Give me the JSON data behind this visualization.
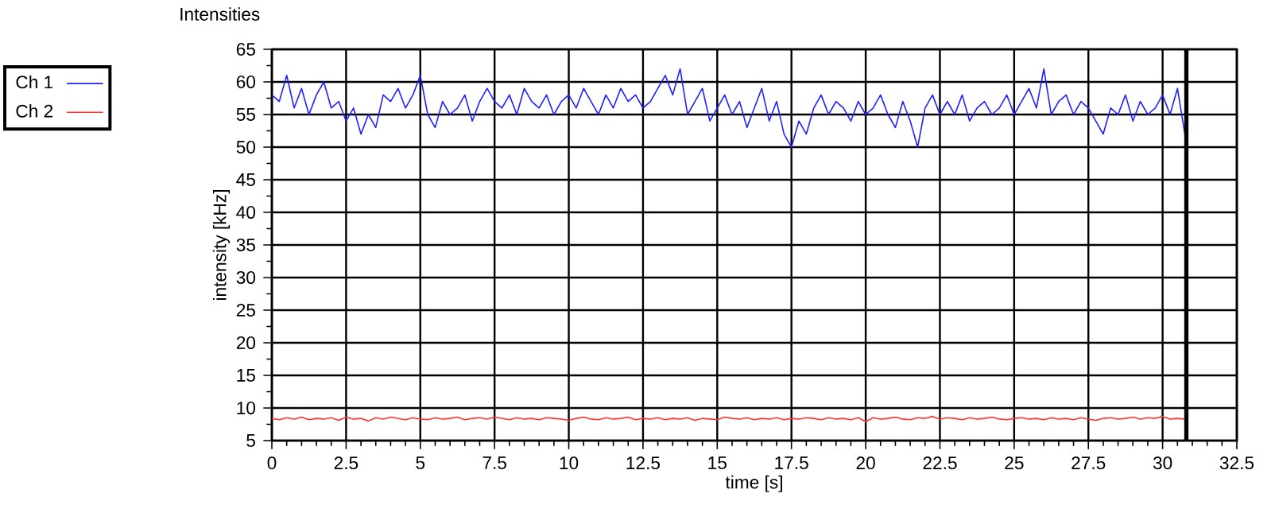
{
  "chart_data": {
    "type": "line",
    "title": "Intensities",
    "xlabel": "time [s]",
    "ylabel": "intensity [kHz]",
    "x": [
      0,
      0.25,
      0.5,
      0.75,
      1,
      1.25,
      1.5,
      1.75,
      2,
      2.25,
      2.5,
      2.75,
      3,
      3.25,
      3.5,
      3.75,
      4,
      4.25,
      4.5,
      4.75,
      5,
      5.25,
      5.5,
      5.75,
      6,
      6.25,
      6.5,
      6.75,
      7,
      7.25,
      7.5,
      7.75,
      8,
      8.25,
      8.5,
      8.75,
      9,
      9.25,
      9.5,
      9.75,
      10,
      10.25,
      10.5,
      10.75,
      11,
      11.25,
      11.5,
      11.75,
      12,
      12.25,
      12.5,
      12.75,
      13,
      13.25,
      13.5,
      13.75,
      14,
      14.25,
      14.5,
      14.75,
      15,
      15.25,
      15.5,
      15.75,
      16,
      16.25,
      16.5,
      16.75,
      17,
      17.25,
      17.5,
      17.75,
      18,
      18.25,
      18.5,
      18.75,
      19,
      19.25,
      19.5,
      19.75,
      20,
      20.25,
      20.5,
      20.75,
      21,
      21.25,
      21.5,
      21.75,
      22,
      22.25,
      22.5,
      22.75,
      23,
      23.25,
      23.5,
      23.75,
      24,
      24.25,
      24.5,
      24.75,
      25,
      25.25,
      25.5,
      25.75,
      26,
      26.25,
      26.5,
      26.75,
      27,
      27.25,
      27.5,
      27.75,
      28,
      28.25,
      28.5,
      28.75,
      29,
      29.25,
      29.5,
      29.75,
      30,
      30.25,
      30.5,
      30.75
    ],
    "series": [
      {
        "name": "Ch 1",
        "color": "#1f1fff",
        "values": [
          58,
          57,
          61,
          56,
          59,
          55,
          58,
          60,
          56,
          57,
          54,
          56,
          52,
          55,
          53,
          58,
          57,
          59,
          56,
          58,
          61,
          55,
          53,
          57,
          55,
          56,
          58,
          54,
          57,
          59,
          57,
          56,
          58,
          55,
          59,
          57,
          56,
          58,
          55,
          57,
          58,
          56,
          59,
          57,
          55,
          58,
          56,
          59,
          57,
          58,
          56,
          57,
          59,
          61,
          58,
          62,
          55,
          57,
          59,
          54,
          56,
          58,
          55,
          57,
          53,
          56,
          59,
          54,
          57,
          52,
          50,
          54,
          52,
          56,
          58,
          55,
          57,
          56,
          54,
          57,
          55,
          56,
          58,
          55,
          53,
          57,
          54,
          50,
          56,
          58,
          55,
          57,
          55,
          58,
          54,
          56,
          57,
          55,
          56,
          58,
          55,
          57,
          59,
          56,
          62,
          55,
          57,
          58,
          55,
          57,
          56,
          54,
          52,
          56,
          55,
          58,
          54,
          57,
          55,
          56,
          58,
          55,
          59,
          52
        ]
      },
      {
        "name": "Ch 2",
        "color": "#ff3030",
        "values": [
          8.4,
          8.2,
          8.5,
          8.3,
          8.6,
          8.2,
          8.4,
          8.3,
          8.5,
          8.1,
          8.6,
          8.3,
          8.4,
          8.0,
          8.5,
          8.3,
          8.6,
          8.4,
          8.2,
          8.5,
          8.3,
          8.2,
          8.5,
          8.3,
          8.4,
          8.6,
          8.2,
          8.4,
          8.5,
          8.3,
          8.6,
          8.4,
          8.2,
          8.5,
          8.3,
          8.4,
          8.2,
          8.5,
          8.4,
          8.3,
          8.1,
          8.4,
          8.6,
          8.3,
          8.2,
          8.5,
          8.3,
          8.4,
          8.6,
          8.2,
          8.4,
          8.3,
          8.5,
          8.2,
          8.4,
          8.3,
          8.5,
          8.1,
          8.4,
          8.3,
          8.2,
          8.6,
          8.4,
          8.3,
          8.5,
          8.2,
          8.4,
          8.3,
          8.5,
          8.2,
          8.4,
          8.3,
          8.5,
          8.4,
          8.2,
          8.5,
          8.3,
          8.4,
          8.2,
          8.5,
          7.9,
          8.5,
          8.3,
          8.4,
          8.6,
          8.3,
          8.2,
          8.5,
          8.4,
          8.7,
          8.3,
          8.5,
          8.4,
          8.2,
          8.5,
          8.3,
          8.4,
          8.6,
          8.3,
          8.2,
          8.4,
          8.5,
          8.3,
          8.4,
          8.2,
          8.5,
          8.3,
          8.4,
          8.2,
          8.5,
          8.3,
          8.1,
          8.4,
          8.5,
          8.3,
          8.4,
          8.6,
          8.3,
          8.5,
          8.4,
          8.7,
          8.3,
          8.4,
          8.3
        ]
      }
    ],
    "xlim": [
      0,
      32.5
    ],
    "ylim": [
      5,
      65
    ],
    "xticks": [
      0,
      2.5,
      5,
      7.5,
      10,
      12.5,
      15,
      17.5,
      20,
      22.5,
      25,
      27.5,
      30,
      32.5
    ],
    "yticks": [
      5,
      10,
      15,
      20,
      25,
      30,
      35,
      40,
      45,
      50,
      55,
      60,
      65
    ],
    "grid": true,
    "legend": "top left",
    "ref_lines": [
      {
        "axis": "x",
        "value": 30.8
      }
    ]
  }
}
